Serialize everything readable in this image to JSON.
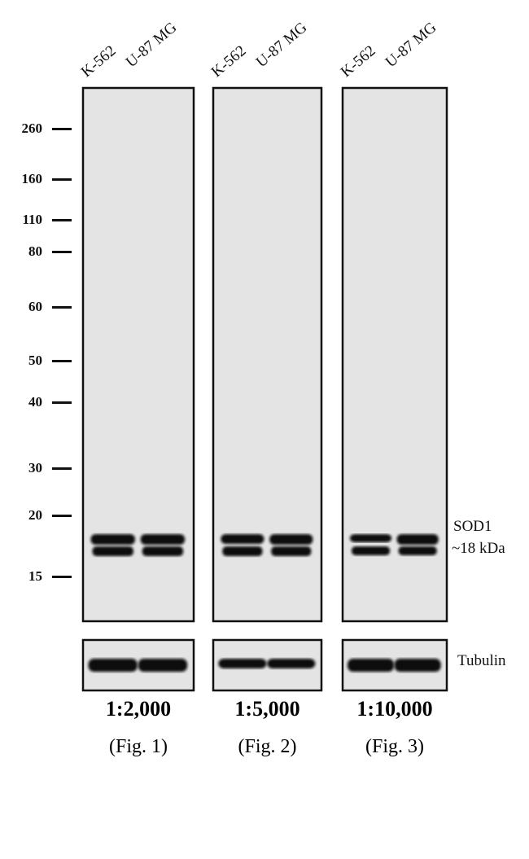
{
  "lanes": [
    "K-562",
    "U-87 MG"
  ],
  "markers": [
    "260",
    "160",
    "110",
    "80",
    "60",
    "50",
    "40",
    "30",
    "20",
    "15"
  ],
  "target": {
    "name": "SOD1",
    "size": "~18 kDa"
  },
  "loading_control": "Tubulin",
  "panels": [
    {
      "dilution": "1:2,000",
      "figure": "(Fig. 1)"
    },
    {
      "dilution": "1:5,000",
      "figure": "(Fig. 2)"
    },
    {
      "dilution": "1:10,000",
      "figure": "(Fig. 3)"
    }
  ],
  "colors": {
    "membrane": "#e4e4e4",
    "band": "#111111"
  }
}
